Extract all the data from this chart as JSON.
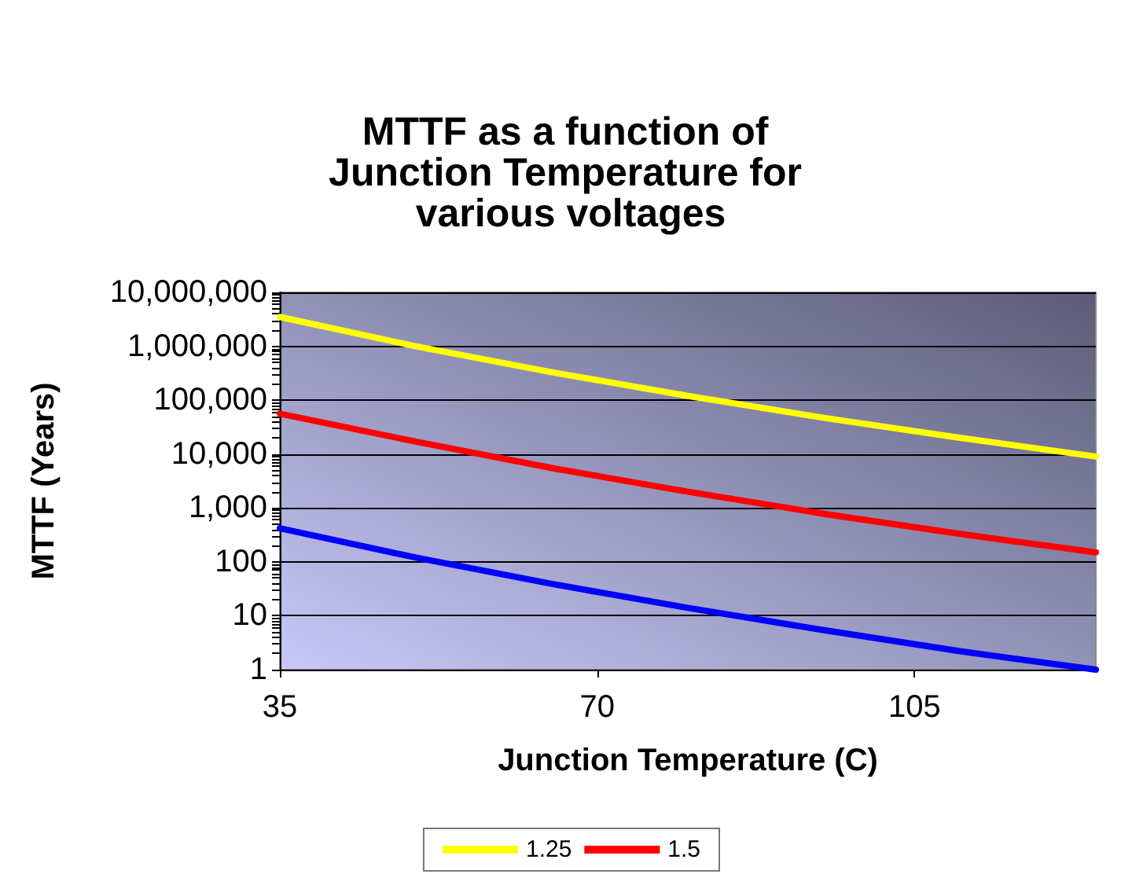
{
  "chart_data": {
    "type": "line",
    "title": "MTTF as a function of Junction Temperature for various voltages",
    "xlabel": "Junction Temperature (C)",
    "ylabel": "MTTF (Years)",
    "x": [
      35,
      50,
      65,
      80,
      95,
      110,
      125
    ],
    "series": [
      {
        "name": "1.25",
        "color": "#ffff00",
        "values": [
          3500000,
          1000000,
          330000,
          120000,
          47000,
          20000,
          9000
        ]
      },
      {
        "name": "1.5",
        "color": "#ff0000",
        "values": [
          56000,
          17000,
          5500,
          2000,
          780,
          330,
          150
        ]
      },
      {
        "color": "#0000ff",
        "values": [
          420,
          120,
          39,
          14,
          5.4,
          2.2,
          1
        ]
      }
    ],
    "log": "y",
    "xlim": [
      35,
      125
    ],
    "xticks": [
      35,
      70,
      105
    ],
    "ylim": [
      1,
      10000000
    ],
    "yticks": [
      1,
      10,
      100,
      {
        "value": 1000,
        "label": "1,000"
      },
      {
        "value": 10000,
        "label": "10,000"
      },
      {
        "value": 100000,
        "label": "100,000"
      },
      {
        "value": 1000000,
        "label": "1,000,000"
      },
      {
        "value": 10000000,
        "label": "10,000,000"
      }
    ],
    "grid": "y",
    "legend": "bottom",
    "marker": "none",
    "line_style": "solid"
  }
}
